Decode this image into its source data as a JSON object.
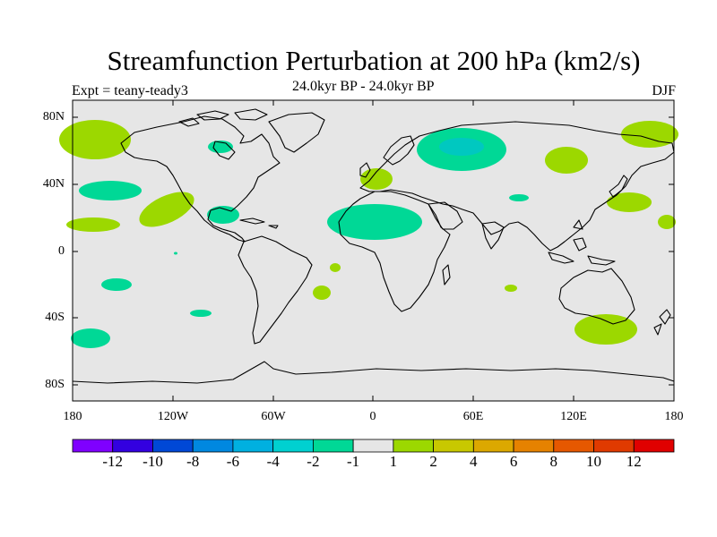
{
  "title": "Streamfunction Perturbation at 200 hPa (km2/s)",
  "subtitle": "24.0kyr BP - 24.0kyr BP",
  "experiment": "Expt = teany-teady3",
  "season": "DJF",
  "map": {
    "projection": "cylindrical-equidistant",
    "lat_labels": [
      "80N",
      "40N",
      "0",
      "40S",
      "80S"
    ],
    "lon_labels": [
      "180",
      "120W",
      "60W",
      "0",
      "60E",
      "120E",
      "180"
    ],
    "background_color": "#e6e6e6",
    "coastline_color": "#000000"
  },
  "colorbar": {
    "labels": [
      "-12",
      "-10",
      "-8",
      "-6",
      "-4",
      "-2",
      "-1",
      "1",
      "2",
      "4",
      "6",
      "8",
      "10",
      "12"
    ],
    "colors": [
      "#7f00ff",
      "#3300e0",
      "#0048d6",
      "#0088e0",
      "#00b0e0",
      "#00d0d0",
      "#00d896",
      "#e6e6e6",
      "#9cd800",
      "#c8c800",
      "#dca800",
      "#e68200",
      "#e65800",
      "#e03a00",
      "#e00000"
    ]
  },
  "anomaly_regions": [
    {
      "lon": -175,
      "lat": 68,
      "sign": "positive"
    },
    {
      "lon": -150,
      "lat": 36,
      "sign": "negative"
    },
    {
      "lon": -135,
      "lat": 20,
      "sign": "positive"
    },
    {
      "lon": -170,
      "lat": 16,
      "sign": "positive"
    },
    {
      "lon": -80,
      "lat": 63,
      "sign": "negative"
    },
    {
      "lon": -80,
      "lat": 21,
      "sign": "negative"
    },
    {
      "lon": -5,
      "lat": 41,
      "sign": "positive"
    },
    {
      "lon": 55,
      "lat": 61,
      "sign": "negative"
    },
    {
      "lon": 10,
      "lat": 17,
      "sign": "negative"
    },
    {
      "lon": 115,
      "lat": 55,
      "sign": "positive"
    },
    {
      "lon": 170,
      "lat": 70,
      "sign": "positive"
    },
    {
      "lon": 155,
      "lat": 28,
      "sign": "positive"
    },
    {
      "lon": 178,
      "lat": 17,
      "sign": "positive"
    },
    {
      "lon": 88,
      "lat": 31,
      "sign": "negative"
    },
    {
      "lon": -152,
      "lat": -20,
      "sign": "negative"
    },
    {
      "lon": -105,
      "lat": -37,
      "sign": "negative"
    },
    {
      "lon": -172,
      "lat": -52,
      "sign": "negative"
    },
    {
      "lon": -23,
      "lat": -10,
      "sign": "positive"
    },
    {
      "lon": -32,
      "lat": -25,
      "sign": "positive"
    },
    {
      "lon": 84,
      "lat": -22,
      "sign": "positive"
    },
    {
      "lon": 145,
      "lat": -46,
      "sign": "positive"
    }
  ]
}
